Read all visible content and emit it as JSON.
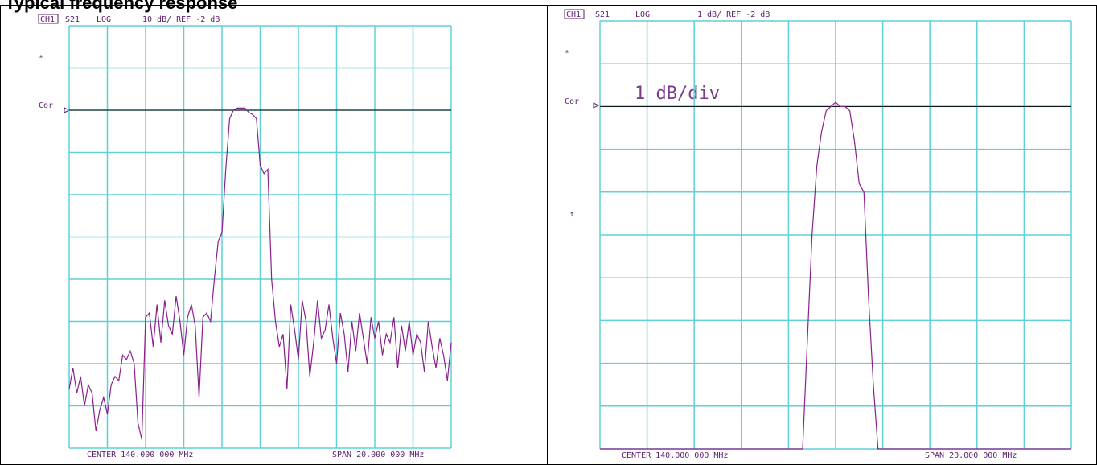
{
  "page": {
    "heading": "Typical frequency response"
  },
  "chart_data": [
    {
      "type": "line",
      "channel": "CH1",
      "parameter": "S21",
      "format": "LOG",
      "scale_label": "10 dB/ REF -2 dB",
      "annotations": {
        "star": "*",
        "cor": "Cor"
      },
      "footer": {
        "center": "CENTER 140.000 000 MHz",
        "span": "SPAN 20.000 000 MHz"
      },
      "xlabel": "",
      "ylabel": "",
      "x_unit": "MHz",
      "xlim": [
        130,
        150
      ],
      "ylim": [
        -82,
        18
      ],
      "ref_level": -2,
      "grid": true,
      "grid_divisions": {
        "x": 10,
        "y": 10
      },
      "series": [
        {
          "x": [
            130.0,
            130.2,
            130.4,
            130.6,
            130.8,
            131.0,
            131.2,
            131.4,
            131.6,
            131.8,
            132.0,
            132.2,
            132.4,
            132.6,
            132.8,
            133.0,
            133.2,
            133.4,
            133.6,
            133.8,
            134.0,
            134.2,
            134.4,
            134.6,
            134.8,
            135.0,
            135.2,
            135.4,
            135.6,
            135.8,
            136.0,
            136.2,
            136.4,
            136.6,
            136.8,
            137.0,
            137.2,
            137.4,
            137.6,
            137.8,
            138.0,
            138.2,
            138.4,
            138.6,
            138.8,
            139.0,
            139.2,
            139.4,
            139.6,
            139.8,
            140.0,
            140.2,
            140.4,
            140.6,
            140.8,
            141.0,
            141.2,
            141.4,
            141.6,
            141.8,
            142.0,
            142.2,
            142.4,
            142.6,
            142.8,
            143.0,
            143.2,
            143.4,
            143.6,
            143.8,
            144.0,
            144.2,
            144.4,
            144.6,
            144.8,
            145.0,
            145.2,
            145.4,
            145.6,
            145.8,
            146.0,
            146.2,
            146.4,
            146.6,
            146.8,
            147.0,
            147.2,
            147.4,
            147.6,
            147.8,
            148.0,
            148.2,
            148.4,
            148.6,
            148.8,
            149.0,
            149.2,
            149.4,
            149.6,
            149.8,
            150.0
          ],
          "y": [
            -68,
            -63,
            -69,
            -65,
            -72,
            -67,
            -69,
            -78,
            -73,
            -70,
            -74,
            -67,
            -65,
            -66,
            -60,
            -61,
            -59,
            -62,
            -76,
            -80,
            -51,
            -50,
            -58,
            -48,
            -57,
            -47,
            -53,
            -55,
            -46,
            -52,
            -60,
            -51,
            -48,
            -53,
            -70,
            -51,
            -50,
            -52,
            -42,
            -33,
            -31,
            -16,
            -4,
            -2,
            -1.5,
            -1.5,
            -1.5,
            -2.5,
            -3,
            -4,
            -15,
            -17,
            -16,
            -42,
            -52,
            -58,
            -55,
            -68,
            -48,
            -54,
            -61,
            -47,
            -52,
            -65,
            -57,
            -47,
            -56,
            -54,
            -48,
            -56,
            -62,
            -50,
            -55,
            -64,
            -52,
            -59,
            -50,
            -56,
            -62,
            -51,
            -56,
            -52,
            -60,
            -55,
            -57,
            -51,
            -63,
            -53,
            -59,
            -52,
            -60,
            -55,
            -57,
            -64,
            -52,
            -58,
            -63,
            -56,
            -60,
            -66,
            -57
          ]
        }
      ]
    },
    {
      "type": "line",
      "channel": "CH1",
      "parameter": "S21",
      "format": "LOG",
      "scale_label": "1 dB/ REF -2 dB",
      "big_label": "1 dB/div",
      "annotations": {
        "star": "*",
        "cor": "Cor",
        "arrow": "↑"
      },
      "footer": {
        "center": "CENTER 140.000 000 MHz",
        "span": "SPAN 20.000 000 MHz"
      },
      "xlabel": "",
      "ylabel": "",
      "x_unit": "MHz",
      "xlim": [
        130,
        150
      ],
      "ylim": [
        -10,
        0
      ],
      "ref_level": -2,
      "grid": true,
      "grid_divisions": {
        "x": 10,
        "y": 10
      },
      "series": [
        {
          "x": [
            130.0,
            138.6,
            138.8,
            139.0,
            139.2,
            139.4,
            139.6,
            139.8,
            140.0,
            140.2,
            140.4,
            140.6,
            140.8,
            141.0,
            141.2,
            141.4,
            141.6,
            141.8,
            142.0,
            150.0
          ],
          "y": [
            -10,
            -10,
            -7.5,
            -5.0,
            -3.4,
            -2.6,
            -2.1,
            -2.0,
            -1.9,
            -2.0,
            -2.0,
            -2.1,
            -2.8,
            -3.8,
            -4.0,
            -6.5,
            -8.5,
            -10,
            -10,
            -10
          ]
        }
      ]
    }
  ]
}
